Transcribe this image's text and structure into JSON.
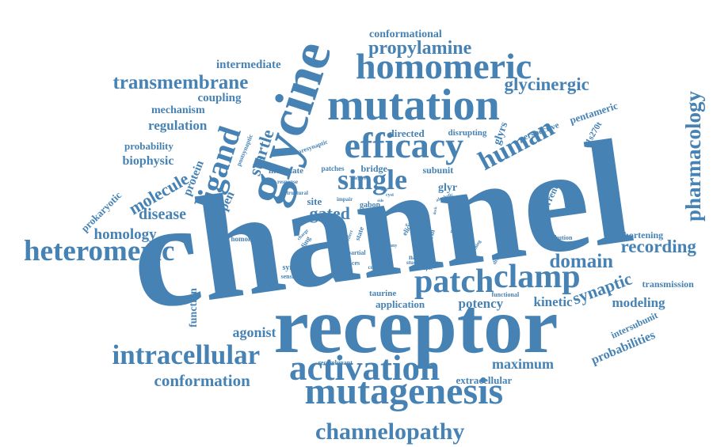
{
  "color": "#4682b4",
  "words": [
    {
      "text": "channel"
    },
    {
      "text": "receptor"
    },
    {
      "text": "glycine"
    },
    {
      "text": "mutation"
    },
    {
      "text": "mutagenesis"
    },
    {
      "text": "activation"
    },
    {
      "text": "homomeric"
    },
    {
      "text": "efficacy"
    },
    {
      "text": "intracellular"
    },
    {
      "text": "heteromeric"
    },
    {
      "text": "patch"
    },
    {
      "text": "clamp"
    },
    {
      "text": "channelopathy"
    },
    {
      "text": "ligand"
    },
    {
      "text": "single"
    },
    {
      "text": "pharmacology"
    },
    {
      "text": "human"
    },
    {
      "text": "transmembrane"
    },
    {
      "text": "propylamine"
    },
    {
      "text": "glycinergic"
    },
    {
      "text": "conformation"
    },
    {
      "text": "recording"
    },
    {
      "text": "domain"
    },
    {
      "text": "synaptic"
    },
    {
      "text": "molecule"
    },
    {
      "text": "startle"
    },
    {
      "text": "gated"
    },
    {
      "text": "disease"
    },
    {
      "text": "homology"
    },
    {
      "text": "maximum"
    },
    {
      "text": "agonist"
    },
    {
      "text": "potency"
    },
    {
      "text": "kinetic"
    },
    {
      "text": "modeling"
    },
    {
      "text": "probabilities"
    },
    {
      "text": "regulation"
    },
    {
      "text": "coupling"
    },
    {
      "text": "mechanism"
    },
    {
      "text": "intermediate"
    },
    {
      "text": "conformational"
    },
    {
      "text": "biophysic"
    },
    {
      "text": "probability"
    },
    {
      "text": "protein"
    },
    {
      "text": "prokaryotic"
    },
    {
      "text": "open"
    },
    {
      "text": "function"
    },
    {
      "text": "extracellular"
    },
    {
      "text": "application"
    },
    {
      "text": "taurine"
    },
    {
      "text": "transmission"
    },
    {
      "text": "shortening"
    },
    {
      "text": "intersubunit"
    },
    {
      "text": "mutant"
    },
    {
      "text": "current"
    },
    {
      "text": "pentameric"
    },
    {
      "text": "a1s270t"
    },
    {
      "text": "perspective"
    },
    {
      "text": "glyrs"
    },
    {
      "text": "directed"
    },
    {
      "text": "disrupting"
    },
    {
      "text": "subunit"
    },
    {
      "text": "glyr"
    },
    {
      "text": "bridge"
    },
    {
      "text": "patches"
    },
    {
      "text": "modulate"
    },
    {
      "text": "site"
    },
    {
      "text": "gabon"
    },
    {
      "text": "synapse"
    },
    {
      "text": "homomers"
    },
    {
      "text": "chrysanthemi"
    },
    {
      "text": "recombinant"
    },
    {
      "text": "functional"
    },
    {
      "text": "distribution"
    },
    {
      "text": "presynaptic"
    },
    {
      "text": "postsynaptic"
    },
    {
      "text": "response"
    },
    {
      "text": "structural"
    },
    {
      "text": "binding"
    },
    {
      "text": "sensitive"
    },
    {
      "text": "helices"
    },
    {
      "text": "native"
    },
    {
      "text": "multiple"
    },
    {
      "text": "partial"
    },
    {
      "text": "contrast"
    },
    {
      "text": "study"
    },
    {
      "text": "model"
    },
    {
      "text": "mediate"
    },
    {
      "text": "elic"
    },
    {
      "text": "impair"
    },
    {
      "text": "salt"
    },
    {
      "text": "state"
    },
    {
      "text": "glycerin"
    },
    {
      "text": "degree"
    },
    {
      "text": "many"
    },
    {
      "text": "short"
    },
    {
      "text": "disruption"
    },
    {
      "text": "opening"
    },
    {
      "text": "alcoholic"
    },
    {
      "text": "cyst"
    },
    {
      "text": "loop"
    },
    {
      "text": "effect"
    },
    {
      "text": "predict"
    },
    {
      "text": "charge"
    },
    {
      "text": "base"
    },
    {
      "text": "side"
    },
    {
      "text": "dock"
    }
  ]
}
